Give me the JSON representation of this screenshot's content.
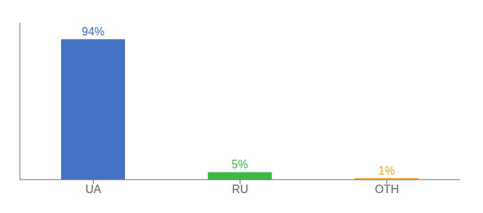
{
  "chart_data": {
    "type": "bar",
    "categories": [
      "UA",
      "RU",
      "OTH"
    ],
    "values": [
      94,
      5,
      1
    ],
    "value_labels": [
      "94%",
      "5%",
      "1%"
    ],
    "colors": [
      "#4472c4",
      "#3cb844",
      "#f5a623"
    ],
    "ylim": [
      0,
      105
    ],
    "data_labels": true,
    "tick_labels": "x",
    "grid": false
  }
}
